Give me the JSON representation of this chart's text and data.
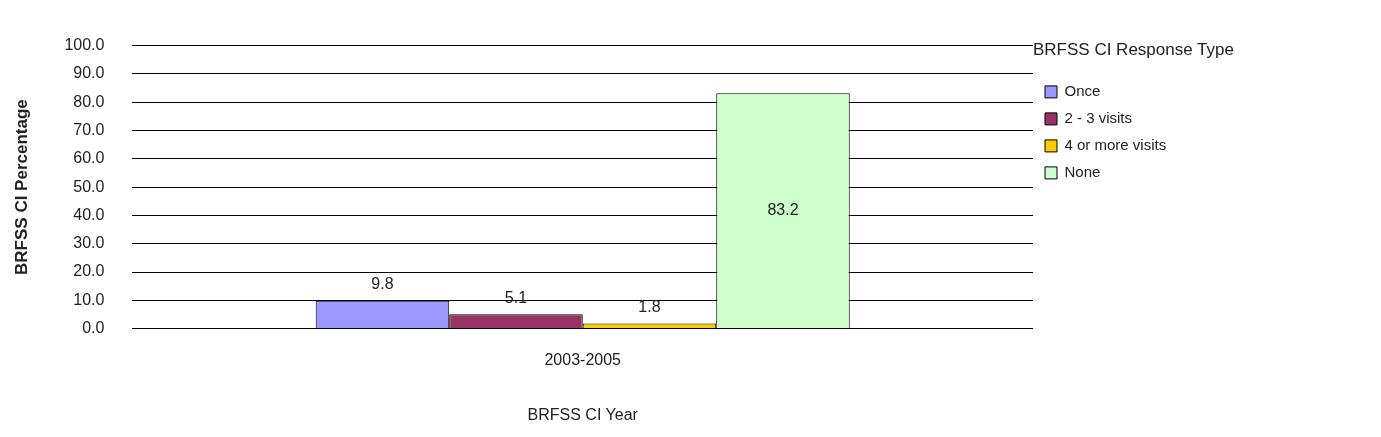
{
  "chart_data": {
    "type": "bar",
    "xlabel": "BRFSS CI Year",
    "ylabel": "BRFSS CI Percentage",
    "legend_title": "BRFSS CI Response Type",
    "categories": [
      "2003-2005"
    ],
    "series": [
      {
        "name": "Once",
        "color": "#9999ff",
        "values": [
          9.8
        ]
      },
      {
        "name": "2 - 3 visits",
        "color": "#993366",
        "values": [
          5.1
        ]
      },
      {
        "name": "4 or more visits",
        "color": "#ffcc00",
        "values": [
          1.8
        ]
      },
      {
        "name": "None",
        "color": "#ccffcc",
        "values": [
          83.2
        ]
      }
    ],
    "ylim": [
      0,
      100
    ],
    "yticks": [
      {
        "value": 0,
        "label": "0.0"
      },
      {
        "value": 10,
        "label": "10.0"
      },
      {
        "value": 20,
        "label": "20.0"
      },
      {
        "value": 30,
        "label": "30.0"
      },
      {
        "value": 40,
        "label": "40.0"
      },
      {
        "value": 50,
        "label": "50.0"
      },
      {
        "value": 60,
        "label": "60.0"
      },
      {
        "value": 70,
        "label": "70.0"
      },
      {
        "value": 80,
        "label": "80.0"
      },
      {
        "value": 90,
        "label": "90.0"
      },
      {
        "value": 100,
        "label": "100.0"
      }
    ],
    "grid": "y",
    "legend": "right",
    "data_labels": true
  }
}
